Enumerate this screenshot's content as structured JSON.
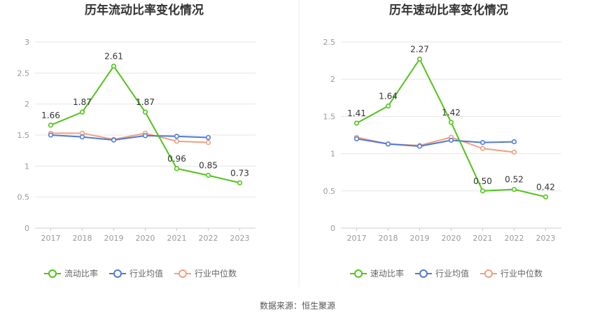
{
  "colors": {
    "current_ratio": "#52c41a",
    "industry_avg": "#4e7ad6",
    "industry_median": "#f0a080",
    "grid": "#e6e6e6",
    "divider": "#eeeeee"
  },
  "source_text": "数据来源：恒生聚源",
  "chart_data": [
    {
      "type": "line",
      "title": "历年流动比率变化情况",
      "categories": [
        "2017",
        "2018",
        "2019",
        "2020",
        "2021",
        "2022",
        "2023"
      ],
      "ylim": [
        0,
        3
      ],
      "yticks": [
        "0",
        "0.5",
        "1",
        "1.5",
        "2",
        "2.5",
        "3"
      ],
      "grid": true,
      "legend_position": "bottom",
      "series": [
        {
          "name": "流动比率",
          "color_key": "current_ratio",
          "values": [
            1.66,
            1.87,
            2.61,
            1.87,
            0.96,
            0.85,
            0.73
          ],
          "labels": [
            "1.66",
            "1.87",
            "2.61",
            "1.87",
            "0.96",
            "0.85",
            "0.73"
          ]
        },
        {
          "name": "行业均值",
          "color_key": "industry_avg",
          "values": [
            1.5,
            1.47,
            1.42,
            1.49,
            1.48,
            1.46,
            null
          ]
        },
        {
          "name": "行业中位数",
          "color_key": "industry_median",
          "values": [
            1.53,
            1.53,
            1.43,
            1.53,
            1.4,
            1.38,
            null
          ]
        }
      ]
    },
    {
      "type": "line",
      "title": "历年速动比率变化情况",
      "categories": [
        "2017",
        "2018",
        "2019",
        "2020",
        "2021",
        "2022",
        "2023"
      ],
      "ylim": [
        0,
        2.5
      ],
      "yticks": [
        "0",
        "0.5",
        "1",
        "1.5",
        "2",
        "2.5"
      ],
      "grid": true,
      "legend_position": "bottom",
      "series": [
        {
          "name": "速动比率",
          "color_key": "current_ratio",
          "values": [
            1.41,
            1.64,
            2.27,
            1.42,
            0.5,
            0.52,
            0.42
          ],
          "labels": [
            "1.41",
            "1.64",
            "2.27",
            "1.42",
            "0.50",
            "0.52",
            "0.42"
          ]
        },
        {
          "name": "行业均值",
          "color_key": "industry_avg",
          "values": [
            1.2,
            1.13,
            1.1,
            1.18,
            1.15,
            1.16,
            null
          ]
        },
        {
          "name": "行业中位数",
          "color_key": "industry_median",
          "values": [
            1.22,
            1.13,
            1.11,
            1.22,
            1.07,
            1.02,
            null
          ]
        }
      ]
    }
  ]
}
